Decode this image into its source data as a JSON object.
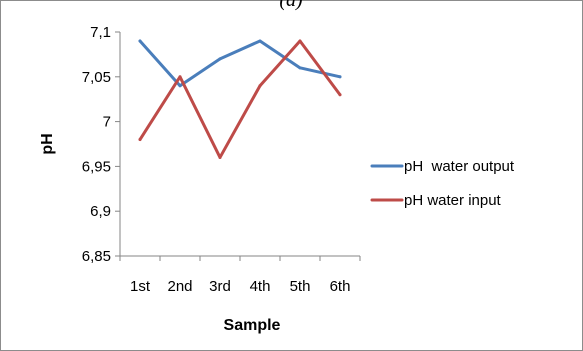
{
  "panel_label": "(a)",
  "chart_data": {
    "type": "line",
    "title": "",
    "xlabel": "Sample",
    "ylabel": "pH",
    "categories": [
      "1st",
      "2nd",
      "3rd",
      "4th",
      "5th",
      "6th"
    ],
    "ylim": [
      6.85,
      7.1
    ],
    "yticks": [
      7.1,
      7.05,
      7,
      6.95,
      6.9,
      6.85
    ],
    "ytick_labels": [
      "7,1",
      "7,05",
      "7",
      "6,95",
      "6,9",
      "6,85"
    ],
    "grid": false,
    "legend_position": "right",
    "series": [
      {
        "name": "pH  water output",
        "color": "#4a7ebb",
        "values": [
          7.09,
          7.04,
          7.07,
          7.09,
          7.06,
          7.05
        ]
      },
      {
        "name": "pH water input",
        "color": "#be4b48",
        "values": [
          6.98,
          7.05,
          6.96,
          7.04,
          7.09,
          7.03
        ]
      }
    ]
  }
}
